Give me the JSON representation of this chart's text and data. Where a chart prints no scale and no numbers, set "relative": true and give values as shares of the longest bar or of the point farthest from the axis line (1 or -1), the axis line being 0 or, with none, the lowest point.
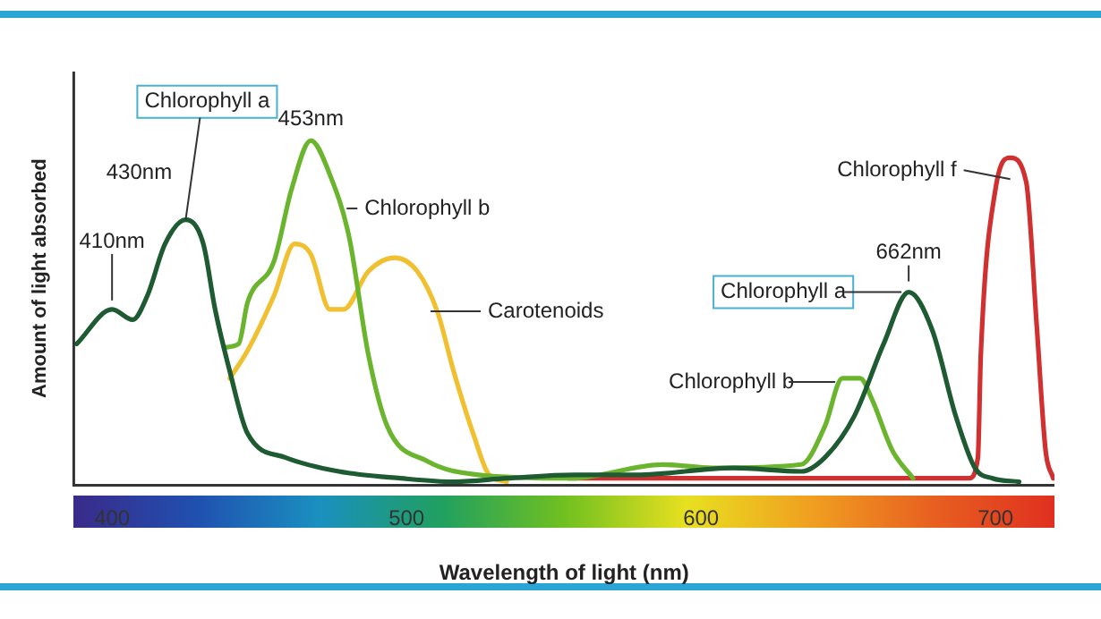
{
  "chart_data": {
    "type": "line",
    "relative": true,
    "xlabel": "Wavelength of light (nm)",
    "ylabel": "Amount of light absorbed",
    "xlim": [
      387,
      720
    ],
    "xticks": [
      400,
      500,
      600,
      700
    ],
    "legend": false,
    "grid": false,
    "marker": "none",
    "line_style": "solid",
    "series": [
      {
        "name": "Chlorophyll a",
        "color": "#1e5a32",
        "x": [
          388,
          400,
          407,
          412,
          418,
          425,
          431,
          435,
          440,
          446,
          459,
          477,
          498,
          516,
          534,
          557,
          578,
          611,
          634,
          642,
          652,
          662,
          670.5,
          678.5,
          686.5,
          693,
          699,
          708
        ],
        "values": [
          0.41,
          0.51,
          0.48,
          0.55,
          0.7,
          0.77,
          0.7,
          0.51,
          0.33,
          0.15,
          0.08,
          0.04,
          0.02,
          0.01,
          0.02,
          0.03,
          0.03,
          0.05,
          0.04,
          0.08,
          0.2,
          0.41,
          0.56,
          0.45,
          0.2,
          0.05,
          0.02,
          0.01
        ]
      },
      {
        "name": "Chlorophyll b",
        "color": "#6ab42e",
        "x": [
          438,
          443,
          446,
          455,
          461,
          467.5,
          474,
          480.5,
          487,
          493.5,
          507,
          524.5,
          556,
          587,
          604,
          634,
          642,
          648,
          654,
          658,
          665,
          672
        ],
        "values": [
          0.4,
          0.41,
          0.53,
          0.65,
          0.86,
          1.0,
          0.9,
          0.72,
          0.38,
          0.17,
          0.07,
          0.03,
          0.02,
          0.06,
          0.05,
          0.06,
          0.17,
          0.31,
          0.31,
          0.25,
          0.1,
          0.02
        ]
      },
      {
        "name": "Carotenoids",
        "color": "#f0c030",
        "x": [
          440,
          446,
          455,
          462,
          467.5,
          474,
          478.6,
          487,
          496,
          503.7,
          510.6,
          516,
          523,
          528,
          534
        ],
        "values": [
          0.31,
          0.39,
          0.55,
          0.7,
          0.67,
          0.51,
          0.51,
          0.62,
          0.66,
          0.62,
          0.5,
          0.33,
          0.14,
          0.03,
          0.01
        ]
      },
      {
        "name": "Chlorophyll f",
        "color": "#d03030",
        "x": [
          555,
          605,
          691,
          694,
          695,
          700,
          705,
          710.4,
          714,
          717,
          719.6
        ],
        "values": [
          0.02,
          0.02,
          0.02,
          0.08,
          0.38,
          0.86,
          0.95,
          0.88,
          0.46,
          0.1,
          0.02
        ]
      }
    ],
    "annotations": [
      {
        "text": "410nm",
        "x": 400,
        "y": 0.51
      },
      {
        "text": "430nm",
        "x": 425,
        "y": 0.77
      },
      {
        "text": "453nm",
        "x": 467.5,
        "y": 1.0
      },
      {
        "text": "662nm",
        "x": 670.5,
        "y": 0.56
      },
      {
        "text": "Chlorophyll a",
        "x": 670.5,
        "y": 0.56
      },
      {
        "text": "Chlorophyll b",
        "x": 648,
        "y": 0.31
      }
    ]
  }
}
